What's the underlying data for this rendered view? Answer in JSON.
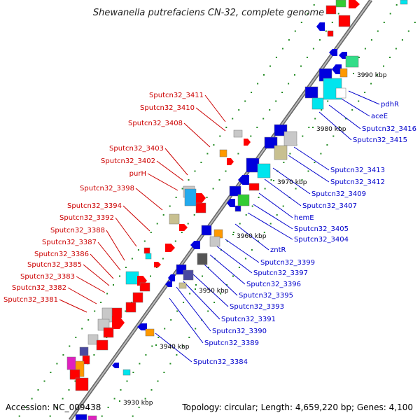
{
  "title": "Shewanella putrefaciens CN-32, complete genome",
  "footer": {
    "accession": "Accession: NC_009438",
    "summary": "Topology: circular; Length: 4,659,220 bp; Genes: 4,100"
  },
  "colors": {
    "backbone": "#8a8a8a",
    "left_label": "#cc0000",
    "right_label": "#0000cc",
    "tick": "#228b22"
  },
  "kbp_markers": [
    "3930 kbp",
    "3940 kbp",
    "3950 kbp",
    "3960 kbp",
    "3970 kbp",
    "3980 kbp",
    "3990 kbp"
  ],
  "left_labels": [
    "Sputcn32_3411",
    "Sputcn32_3410",
    "Sputcn32_3408",
    "Sputcn32_3403",
    "Sputcn32_3402",
    "purH",
    "Sputcn32_3398",
    "Sputcn32_3394",
    "Sputcn32_3392",
    "Sputcn32_3388",
    "Sputcn32_3387",
    "Sputcn32_3386",
    "Sputcn32_3385",
    "Sputcn32_3383",
    "Sputcn32_3382",
    "Sputcn32_3381"
  ],
  "right_labels": [
    "pdhR",
    "aceE",
    "Sputcn32_3416",
    "Sputcn32_3415",
    "Sputcn32_3413",
    "Sputcn32_3412",
    "Sputcn32_3409",
    "Sputcn32_3407",
    "hemE",
    "Sputcn32_3405",
    "Sputcn32_3404",
    "zntR",
    "Sputcn32_3399",
    "Sputcn32_3397",
    "Sputcn32_3396",
    "Sputcn32_3395",
    "Sputcn32_3393",
    "Sputcn32_3391",
    "Sputcn32_3390",
    "Sputcn32_3389",
    "Sputcn32_3384"
  ]
}
